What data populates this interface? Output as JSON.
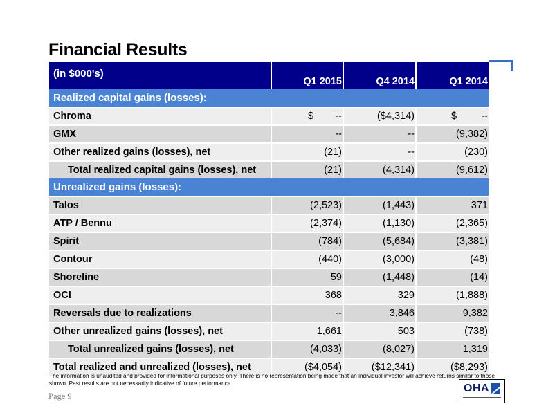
{
  "page": {
    "title": "Financial Results",
    "page_label": "Page 9",
    "footnote": "The information is unaudited and provided for informational purposes only. There is no representation being made that an individual investor will achieve returns similar to those shown. Past results are not necessarily indicative of future performance.",
    "logo_text": "OHA"
  },
  "table": {
    "header": {
      "label": "(in $000's)",
      "col1": "Q1 2015",
      "col2": "Q4 2014",
      "col3": "Q1 2014"
    },
    "section_realized": "Realized capital gains (losses):",
    "section_unrealized": "Unrealized gains (losses):",
    "rows": [
      {
        "label": "Chroma",
        "v1_prefix": "$",
        "v1": "--",
        "v2": "($4,314)",
        "v3_prefix": "$",
        "v3": "--"
      },
      {
        "label": "GMX",
        "v1": "--",
        "v2": "--",
        "v3": "(9,382)"
      },
      {
        "label": "Other realized gains (losses), net",
        "v1": "(21)",
        "v2": "--",
        "v3": "(230)"
      },
      {
        "label": "Total realized capital gains (losses), net",
        "v1": "(21)",
        "v2": "(4,314)",
        "v3": "(9,612)"
      },
      {
        "label": "Talos",
        "v1": "(2,523)",
        "v2": "(1,443)",
        "v3": "371"
      },
      {
        "label": "ATP / Bennu",
        "v1": "(2,374)",
        "v2": "(1,130)",
        "v3": "(2,365)"
      },
      {
        "label": "Spirit",
        "v1": "(784)",
        "v2": "(5,684)",
        "v3": "(3,381)"
      },
      {
        "label": "Contour",
        "v1": "(440)",
        "v2": "(3,000)",
        "v3": "(48)"
      },
      {
        "label": "Shoreline",
        "v1": "59",
        "v2": "(1,448)",
        "v3": "(14)"
      },
      {
        "label": "OCI",
        "v1": "368",
        "v2": "329",
        "v3": "(1,888)"
      },
      {
        "label": "Reversals due to realizations",
        "v1": "--",
        "v2": "3,846",
        "v3": "9,382"
      },
      {
        "label": "Other unrealized gains (losses), net",
        "v1": "1,661",
        "v2": "503",
        "v3": "(738)"
      },
      {
        "label": "Total unrealized gains (losses), net",
        "v1": "(4,033)",
        "v2": "(8,027)",
        "v3": "1,319"
      },
      {
        "label": "Total realized and unrealized (losses), net",
        "v1": "($4,054)",
        "v2": "($12,341)",
        "v3": "($8,293)"
      }
    ]
  }
}
